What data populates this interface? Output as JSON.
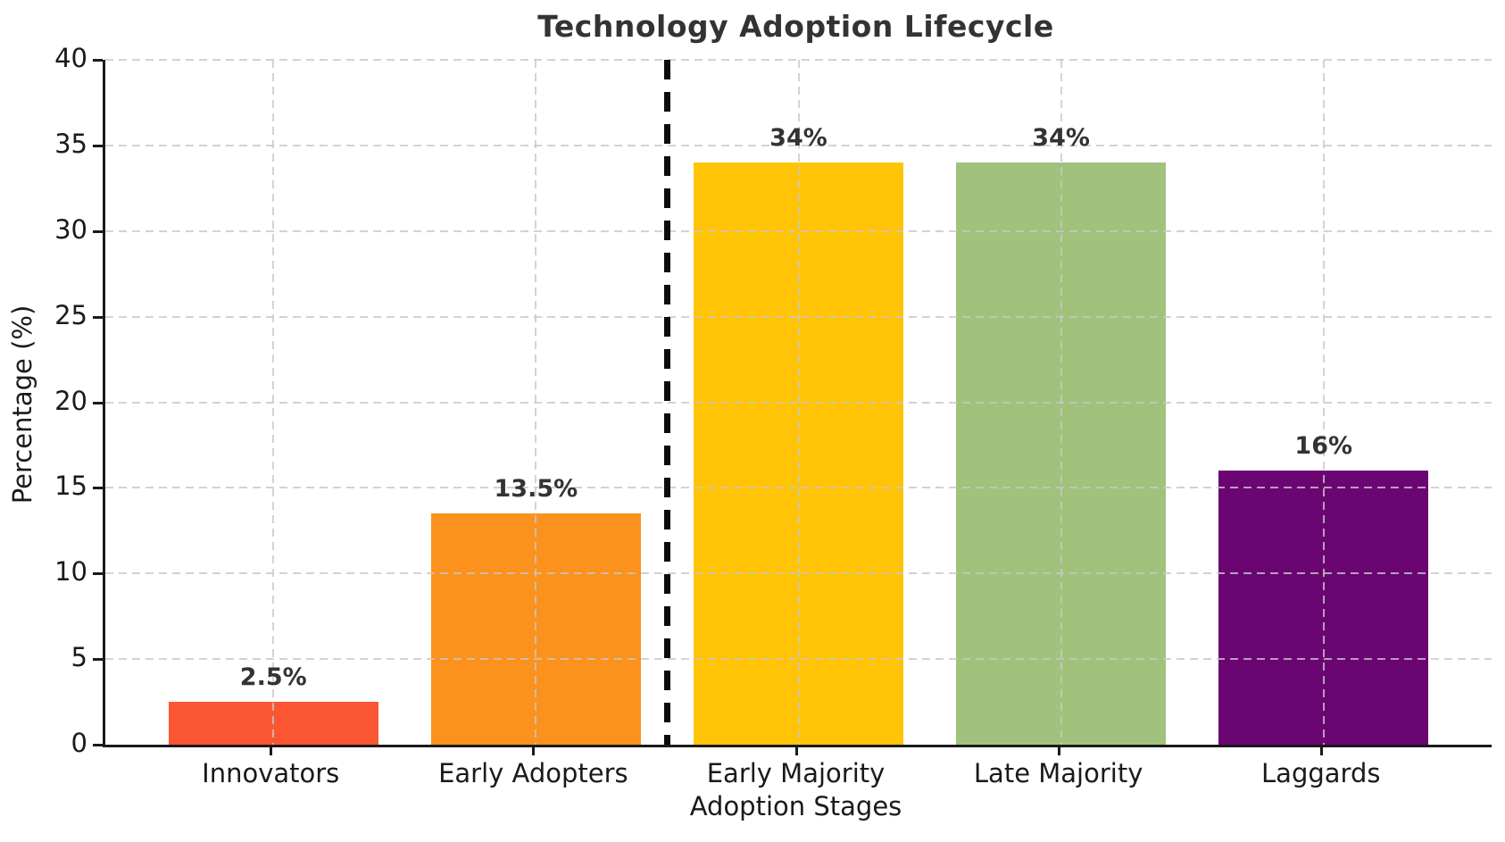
{
  "chart_data": {
    "type": "bar",
    "title": "Technology Adoption Lifecycle",
    "xlabel": "Adoption Stages",
    "ylabel": "Percentage (%)",
    "categories": [
      "Innovators",
      "Early Adopters",
      "Early Majority",
      "Late Majority",
      "Laggards"
    ],
    "values": [
      2.5,
      13.5,
      34,
      34,
      16
    ],
    "value_labels": [
      "2.5%",
      "13.5%",
      "34%",
      "34%",
      "16%"
    ],
    "bar_colors": [
      "#FB5634",
      "#FB921D",
      "#FFC405",
      "#A0C27D",
      "#6B0572"
    ],
    "ylim": [
      0,
      40
    ],
    "yticks": [
      0,
      5,
      10,
      15,
      20,
      25,
      30,
      35,
      40
    ],
    "grid": "dashed light-gray, horizontal at y ticks and vertical at category centers, drawn above bars",
    "legend": "none",
    "annotations": [
      {
        "type": "vline",
        "x": 1.5,
        "style": "dashed",
        "color": "#0d0d0d",
        "note": "separator between Early Adopters and Early Majority"
      }
    ],
    "spine_color": "#1a1a1a",
    "text_color": "#333333"
  }
}
